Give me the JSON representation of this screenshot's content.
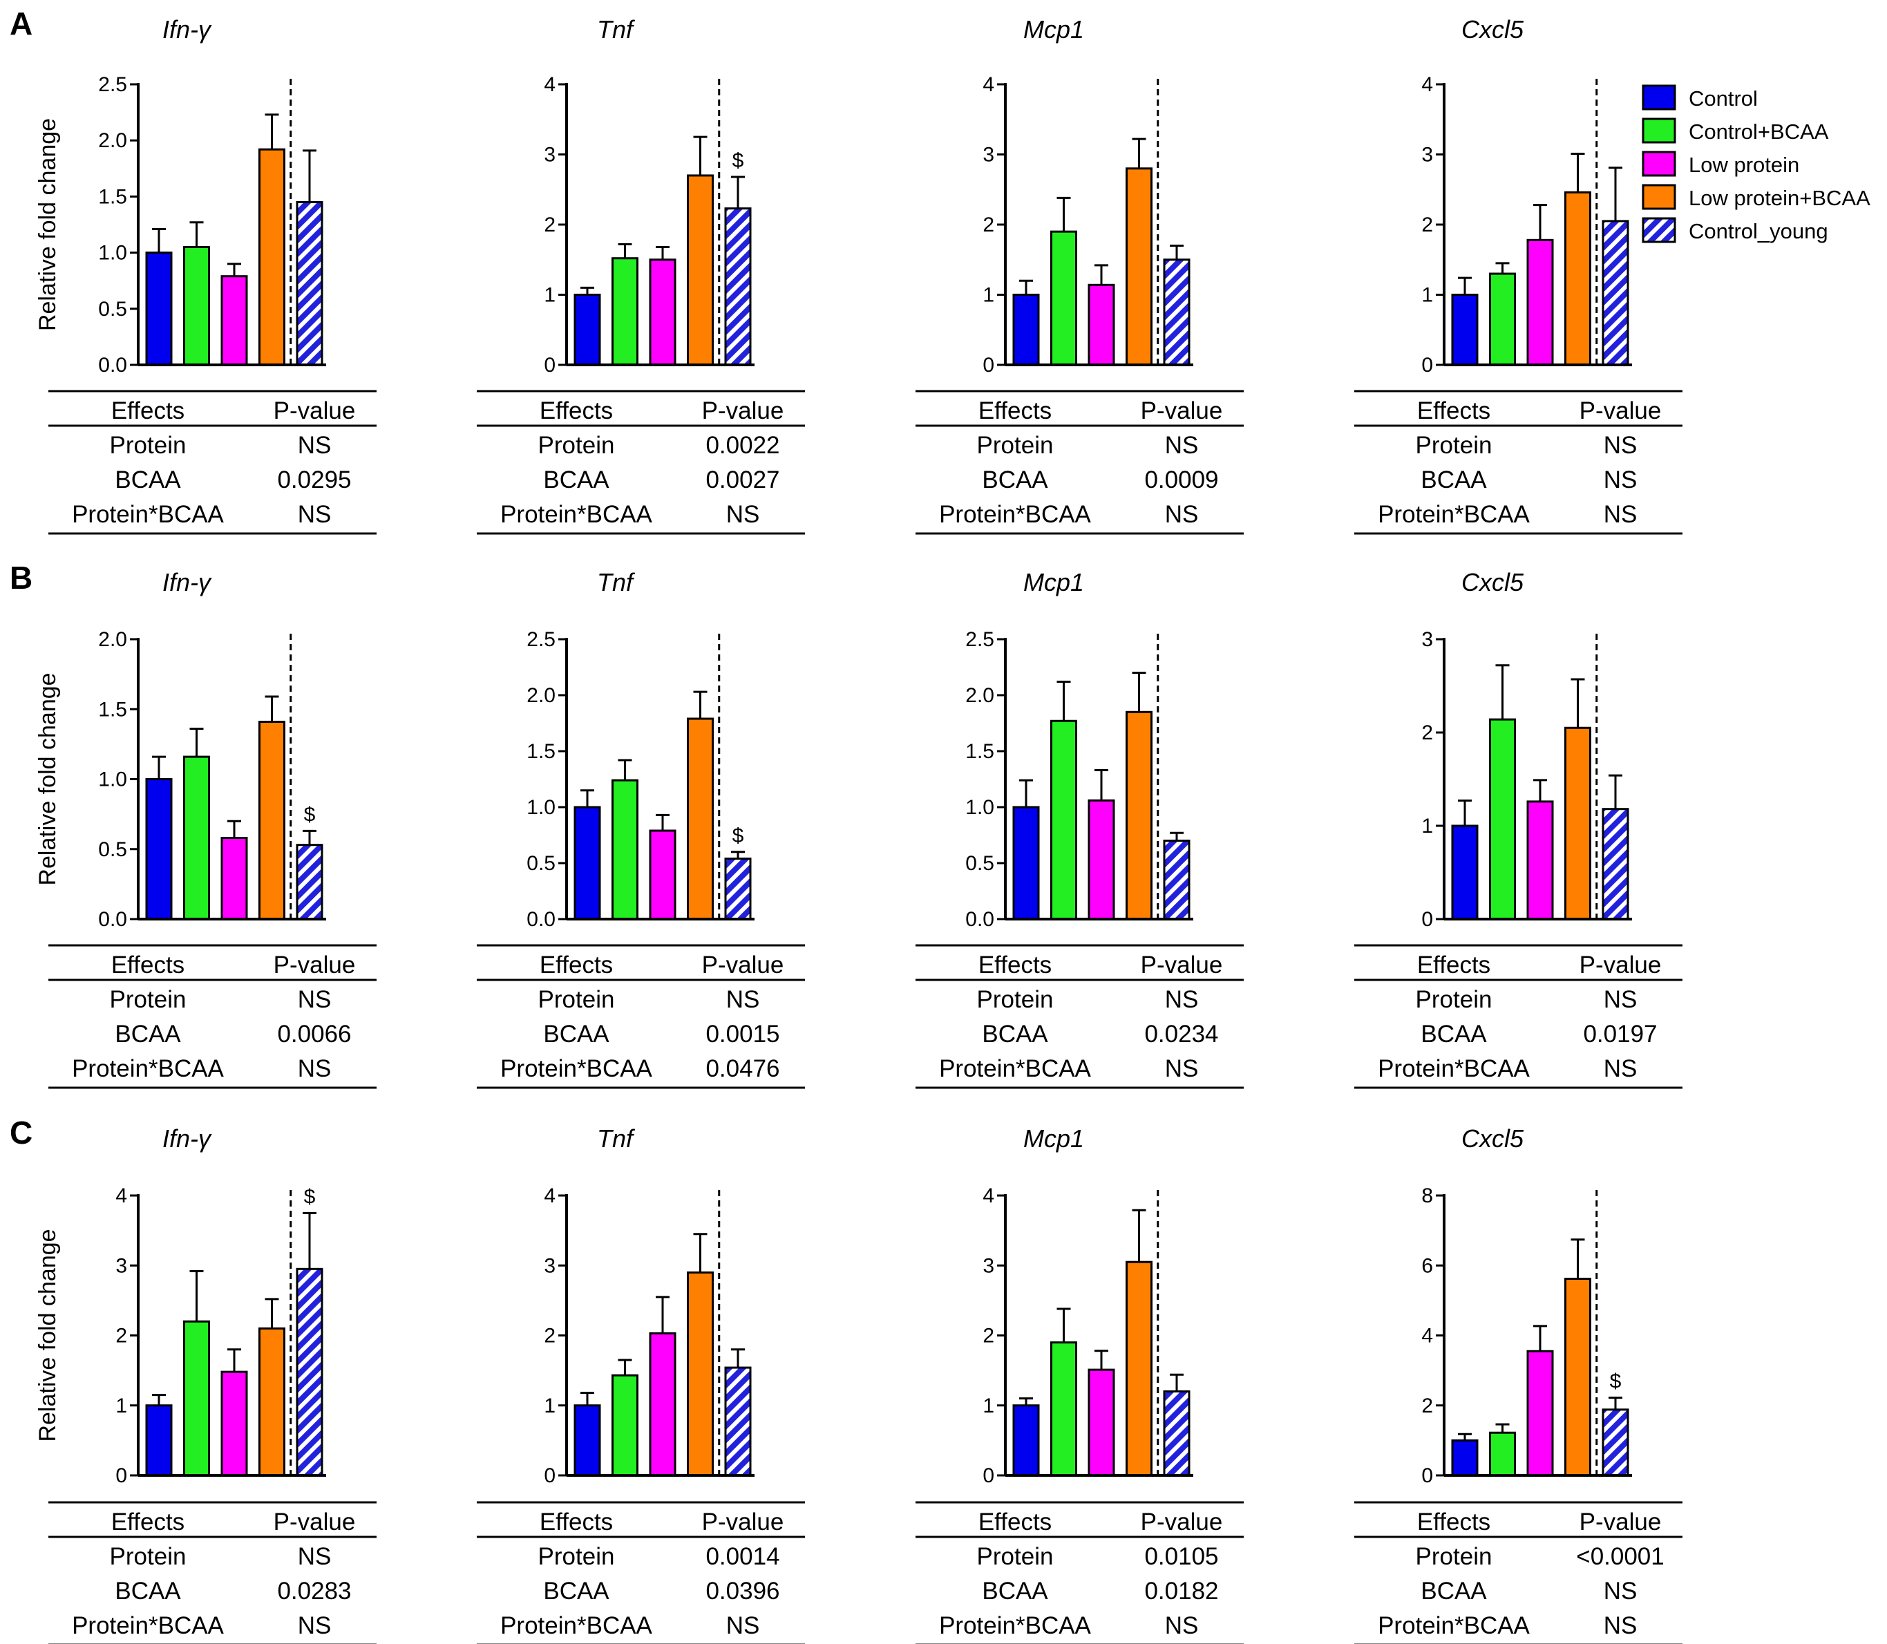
{
  "colors": {
    "Control": "#0000ee",
    "Control+BCAA": "#22ee22",
    "Low protein": "#ff00ff",
    "Low protein+BCAA": "#ff8000",
    "Control_young": "#2222dd"
  },
  "legend": {
    "entries": [
      {
        "label": "Control",
        "style": "solid",
        "color": "#0000ee"
      },
      {
        "label": "Control+BCAA",
        "style": "solid",
        "color": "#22ee22"
      },
      {
        "label": "Low protein",
        "style": "solid",
        "color": "#ff00ff"
      },
      {
        "label": "Low protein+BCAA",
        "style": "solid",
        "color": "#ff8000"
      },
      {
        "label": "Control_young",
        "style": "hatched",
        "color": "#2222dd"
      }
    ]
  },
  "panels": [
    {
      "letter": "A",
      "ylabel": "Relative fold change"
    },
    {
      "letter": "B",
      "ylabel": "Relative fold change"
    },
    {
      "letter": "C",
      "ylabel": "Relative fold change"
    }
  ],
  "table_headers": {
    "effects": "Effects",
    "pvalue": "P-value"
  },
  "chart_data": [
    {
      "type": "bar",
      "panel": "A",
      "title": "Ifn-γ",
      "ylabel": "Relative fold change",
      "ylim": [
        0,
        2.5
      ],
      "yticks": [
        "0.0",
        "0.5",
        "1.0",
        "1.5",
        "2.0",
        "2.5"
      ],
      "categories": [
        "Control",
        "Control+BCAA",
        "Low protein",
        "Low protein+BCAA",
        "Control_young"
      ],
      "values": [
        1.0,
        1.05,
        0.79,
        1.92,
        1.45
      ],
      "errors": [
        0.21,
        0.22,
        0.11,
        0.31,
        0.46
      ],
      "significance": {
        "index": -1,
        "mark": "$"
      },
      "effects": [
        {
          "name": "Protein",
          "p": "NS"
        },
        {
          "name": "BCAA",
          "p": "0.0295"
        },
        {
          "name": "Protein*BCAA",
          "p": "NS"
        }
      ]
    },
    {
      "type": "bar",
      "panel": "A",
      "title": "Tnf",
      "ylim": [
        0,
        4
      ],
      "yticks": [
        "0",
        "1",
        "2",
        "3",
        "4"
      ],
      "categories": [
        "Control",
        "Control+BCAA",
        "Low protein",
        "Low protein+BCAA",
        "Control_young"
      ],
      "values": [
        1.0,
        1.52,
        1.5,
        2.7,
        2.23
      ],
      "errors": [
        0.1,
        0.2,
        0.18,
        0.55,
        0.45
      ],
      "significance": {
        "index": 4,
        "mark": "$"
      },
      "effects": [
        {
          "name": "Protein",
          "p": "0.0022"
        },
        {
          "name": "BCAA",
          "p": "0.0027"
        },
        {
          "name": "Protein*BCAA",
          "p": "NS"
        }
      ]
    },
    {
      "type": "bar",
      "panel": "A",
      "title": "Mcp1",
      "ylim": [
        0,
        4
      ],
      "yticks": [
        "0",
        "1",
        "2",
        "3",
        "4"
      ],
      "categories": [
        "Control",
        "Control+BCAA",
        "Low protein",
        "Low protein+BCAA",
        "Control_young"
      ],
      "values": [
        1.0,
        1.9,
        1.14,
        2.8,
        1.5
      ],
      "errors": [
        0.2,
        0.48,
        0.28,
        0.42,
        0.2
      ],
      "significance": {
        "index": -1,
        "mark": "$"
      },
      "effects": [
        {
          "name": "Protein",
          "p": "NS"
        },
        {
          "name": "BCAA",
          "p": "0.0009"
        },
        {
          "name": "Protein*BCAA",
          "p": "NS"
        }
      ]
    },
    {
      "type": "bar",
      "panel": "A",
      "title": "Cxcl5",
      "ylim": [
        0,
        4
      ],
      "yticks": [
        "0",
        "1",
        "2",
        "3",
        "4"
      ],
      "categories": [
        "Control",
        "Control+BCAA",
        "Low protein",
        "Low protein+BCAA",
        "Control_young"
      ],
      "values": [
        1.0,
        1.3,
        1.78,
        2.46,
        2.05
      ],
      "errors": [
        0.24,
        0.15,
        0.5,
        0.55,
        0.76
      ],
      "significance": {
        "index": -1,
        "mark": "$"
      },
      "effects": [
        {
          "name": "Protein",
          "p": "NS"
        },
        {
          "name": "BCAA",
          "p": "NS"
        },
        {
          "name": "Protein*BCAA",
          "p": "NS"
        }
      ]
    },
    {
      "type": "bar",
      "panel": "B",
      "title": "Ifn-γ",
      "ylabel": "Relative fold change",
      "ylim": [
        0,
        2.0
      ],
      "yticks": [
        "0.0",
        "0.5",
        "1.0",
        "1.5",
        "2.0"
      ],
      "categories": [
        "Control",
        "Control+BCAA",
        "Low protein",
        "Low protein+BCAA",
        "Control_young"
      ],
      "values": [
        1.0,
        1.16,
        0.58,
        1.41,
        0.53
      ],
      "errors": [
        0.16,
        0.2,
        0.12,
        0.18,
        0.1
      ],
      "significance": {
        "index": 4,
        "mark": "$"
      },
      "effects": [
        {
          "name": "Protein",
          "p": "NS"
        },
        {
          "name": "BCAA",
          "p": "0.0066"
        },
        {
          "name": "Protein*BCAA",
          "p": "NS"
        }
      ]
    },
    {
      "type": "bar",
      "panel": "B",
      "title": "Tnf",
      "ylim": [
        0,
        2.5
      ],
      "yticks": [
        "0.0",
        "0.5",
        "1.0",
        "1.5",
        "2.0",
        "2.5"
      ],
      "categories": [
        "Control",
        "Control+BCAA",
        "Low protein",
        "Low protein+BCAA",
        "Control_young"
      ],
      "values": [
        1.0,
        1.24,
        0.79,
        1.79,
        0.54
      ],
      "errors": [
        0.15,
        0.18,
        0.14,
        0.24,
        0.06
      ],
      "significance": {
        "index": 4,
        "mark": "$"
      },
      "effects": [
        {
          "name": "Protein",
          "p": "NS"
        },
        {
          "name": "BCAA",
          "p": "0.0015"
        },
        {
          "name": "Protein*BCAA",
          "p": "0.0476"
        }
      ]
    },
    {
      "type": "bar",
      "panel": "B",
      "title": "Mcp1",
      "ylim": [
        0,
        2.5
      ],
      "yticks": [
        "0.0",
        "0.5",
        "1.0",
        "1.5",
        "2.0",
        "2.5"
      ],
      "categories": [
        "Control",
        "Control+BCAA",
        "Low protein",
        "Low protein+BCAA",
        "Control_young"
      ],
      "values": [
        1.0,
        1.77,
        1.06,
        1.85,
        0.7
      ],
      "errors": [
        0.24,
        0.35,
        0.27,
        0.35,
        0.07
      ],
      "significance": {
        "index": -1,
        "mark": "$"
      },
      "effects": [
        {
          "name": "Protein",
          "p": "NS"
        },
        {
          "name": "BCAA",
          "p": "0.0234"
        },
        {
          "name": "Protein*BCAA",
          "p": "NS"
        }
      ]
    },
    {
      "type": "bar",
      "panel": "B",
      "title": "Cxcl5",
      "ylim": [
        0,
        3
      ],
      "yticks": [
        "0",
        "1",
        "2",
        "3"
      ],
      "categories": [
        "Control",
        "Control+BCAA",
        "Low protein",
        "Low protein+BCAA",
        "Control_young"
      ],
      "values": [
        1.0,
        2.14,
        1.26,
        2.05,
        1.18
      ],
      "errors": [
        0.27,
        0.58,
        0.23,
        0.52,
        0.36
      ],
      "significance": {
        "index": -1,
        "mark": "$"
      },
      "effects": [
        {
          "name": "Protein",
          "p": "NS"
        },
        {
          "name": "BCAA",
          "p": "0.0197"
        },
        {
          "name": "Protein*BCAA",
          "p": "NS"
        }
      ]
    },
    {
      "type": "bar",
      "panel": "C",
      "title": "Ifn-γ",
      "ylabel": "Relative fold change",
      "ylim": [
        0,
        4
      ],
      "yticks": [
        "0",
        "1",
        "2",
        "3",
        "4"
      ],
      "categories": [
        "Control",
        "Control+BCAA",
        "Low protein",
        "Low protein+BCAA",
        "Control_young"
      ],
      "values": [
        1.0,
        2.2,
        1.48,
        2.1,
        2.95
      ],
      "errors": [
        0.15,
        0.72,
        0.32,
        0.42,
        0.8
      ],
      "significance": {
        "index": 4,
        "mark": "$"
      },
      "effects": [
        {
          "name": "Protein",
          "p": "NS"
        },
        {
          "name": "BCAA",
          "p": "0.0283"
        },
        {
          "name": "Protein*BCAA",
          "p": "NS"
        }
      ]
    },
    {
      "type": "bar",
      "panel": "C",
      "title": "Tnf",
      "ylim": [
        0,
        4
      ],
      "yticks": [
        "0",
        "1",
        "2",
        "3",
        "4"
      ],
      "categories": [
        "Control",
        "Control+BCAA",
        "Low protein",
        "Low protein+BCAA",
        "Control_young"
      ],
      "values": [
        1.0,
        1.43,
        2.03,
        2.9,
        1.54
      ],
      "errors": [
        0.18,
        0.22,
        0.52,
        0.55,
        0.26
      ],
      "significance": {
        "index": -1,
        "mark": "$"
      },
      "effects": [
        {
          "name": "Protein",
          "p": "0.0014"
        },
        {
          "name": "BCAA",
          "p": "0.0396"
        },
        {
          "name": "Protein*BCAA",
          "p": "NS"
        }
      ]
    },
    {
      "type": "bar",
      "panel": "C",
      "title": "Mcp1",
      "ylim": [
        0,
        4
      ],
      "yticks": [
        "0",
        "1",
        "2",
        "3",
        "4"
      ],
      "categories": [
        "Control",
        "Control+BCAA",
        "Low protein",
        "Low protein+BCAA",
        "Control_young"
      ],
      "values": [
        1.0,
        1.9,
        1.51,
        3.05,
        1.2
      ],
      "errors": [
        0.1,
        0.48,
        0.27,
        0.74,
        0.24
      ],
      "significance": {
        "index": -1,
        "mark": "$"
      },
      "effects": [
        {
          "name": "Protein",
          "p": "0.0105"
        },
        {
          "name": "BCAA",
          "p": "0.0182"
        },
        {
          "name": "Protein*BCAA",
          "p": "NS"
        }
      ]
    },
    {
      "type": "bar",
      "panel": "C",
      "title": "Cxcl5",
      "ylim": [
        0,
        8
      ],
      "yticks": [
        "0",
        "2",
        "4",
        "6",
        "8"
      ],
      "categories": [
        "Control",
        "Control+BCAA",
        "Low protein",
        "Low protein+BCAA",
        "Control_young"
      ],
      "values": [
        1.0,
        1.22,
        3.55,
        5.62,
        1.88
      ],
      "errors": [
        0.18,
        0.24,
        0.72,
        1.12,
        0.34
      ],
      "significance": {
        "index": 4,
        "mark": "$"
      },
      "effects": [
        {
          "name": "Protein",
          "p": "<0.0001"
        },
        {
          "name": "BCAA",
          "p": "NS"
        },
        {
          "name": "Protein*BCAA",
          "p": "NS"
        }
      ]
    }
  ]
}
